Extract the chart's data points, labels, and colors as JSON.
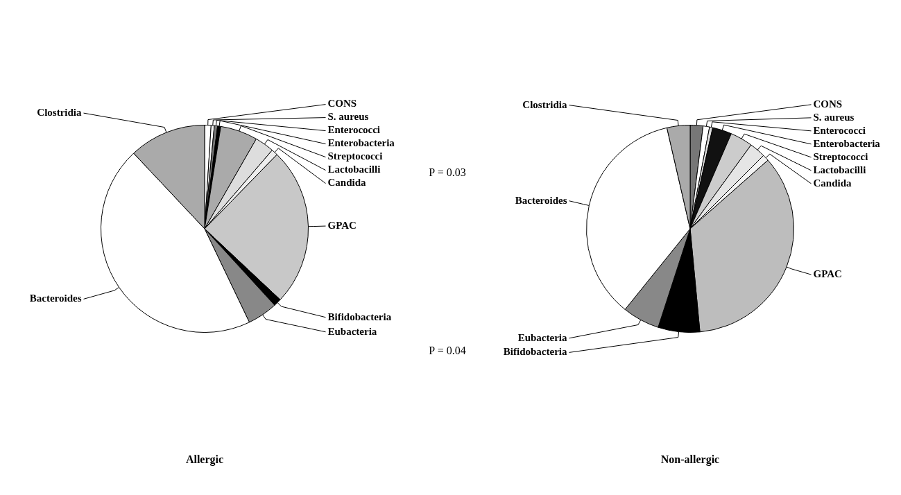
{
  "chart_data": [
    {
      "type": "pie",
      "title": "Allergic",
      "categories": [
        "CONS",
        "S. aureus",
        "Enterococci",
        "Enterobacteria",
        "Streptococci",
        "Lactobacilli",
        "Candida",
        "GPAC",
        "Bifidobacteria",
        "Eubacteria",
        "Bacteroides",
        "Clostridia"
      ],
      "values": [
        1,
        0.5,
        0.5,
        0.5,
        5.8,
        3,
        1,
        24.7,
        1.2,
        4.7,
        45.1,
        12
      ],
      "colors": [
        "#ffffff",
        "#f4f4f4",
        "#777777",
        "#000000",
        "#aaaaaa",
        "#dddddd",
        "#eeeeee",
        "#c8c8c8",
        "#000000",
        "#888888",
        "#ffffff",
        "#aaaaaa"
      ],
      "annotations": [
        "P = 0.03",
        "P = 0.04"
      ],
      "legend": false
    },
    {
      "type": "pie",
      "title": "Non-allergic",
      "categories": [
        "CONS",
        "S. aureus",
        "Enterococci",
        "Enterobacteria",
        "Streptococci",
        "Lactobacilli",
        "Candida",
        "GPAC",
        "Bifidobacteria",
        "Eubacteria",
        "Bacteroides",
        "Clostridia"
      ],
      "values": [
        2,
        1,
        0.5,
        3,
        3.5,
        2.5,
        1,
        35,
        6.5,
        5.8,
        35.6,
        3.6
      ],
      "colors": [
        "#777777",
        "#ffffff",
        "#dddddd",
        "#111111",
        "#cccccc",
        "#e5e5e5",
        "#f2f2f2",
        "#bdbdbd",
        "#000000",
        "#888888",
        "#ffffff",
        "#aaaaaa"
      ],
      "legend": false
    }
  ]
}
